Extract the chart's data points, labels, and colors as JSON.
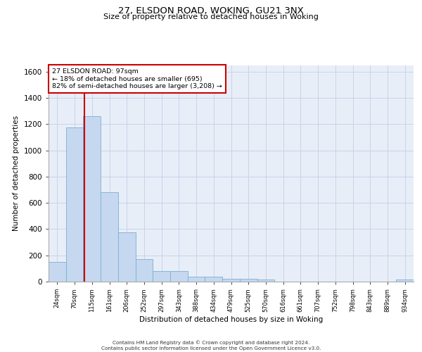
{
  "title_line1": "27, ELSDON ROAD, WOKING, GU21 3NX",
  "title_line2": "Size of property relative to detached houses in Woking",
  "xlabel": "Distribution of detached houses by size in Woking",
  "ylabel": "Number of detached properties",
  "categories": [
    "24sqm",
    "70sqm",
    "115sqm",
    "161sqm",
    "206sqm",
    "252sqm",
    "297sqm",
    "343sqm",
    "388sqm",
    "434sqm",
    "479sqm",
    "525sqm",
    "570sqm",
    "616sqm",
    "661sqm",
    "707sqm",
    "752sqm",
    "798sqm",
    "843sqm",
    "889sqm",
    "934sqm"
  ],
  "values": [
    150,
    1175,
    1260,
    680,
    375,
    170,
    80,
    80,
    35,
    35,
    20,
    20,
    15,
    0,
    0,
    0,
    0,
    0,
    0,
    0,
    15
  ],
  "bar_color": "#c5d8f0",
  "bar_edgecolor": "#7aafd4",
  "grid_color": "#c8d4e8",
  "background_color": "#e8eef8",
  "vline_x": 1.58,
  "vline_color": "#cc0000",
  "annotation_text": "27 ELSDON ROAD: 97sqm\n← 18% of detached houses are smaller (695)\n82% of semi-detached houses are larger (3,208) →",
  "annotation_box_color": "#cc0000",
  "ylim": [
    0,
    1650
  ],
  "yticks": [
    0,
    200,
    400,
    600,
    800,
    1000,
    1200,
    1400,
    1600
  ],
  "footer_line1": "Contains HM Land Registry data © Crown copyright and database right 2024.",
  "footer_line2": "Contains public sector information licensed under the Open Government Licence v3.0."
}
